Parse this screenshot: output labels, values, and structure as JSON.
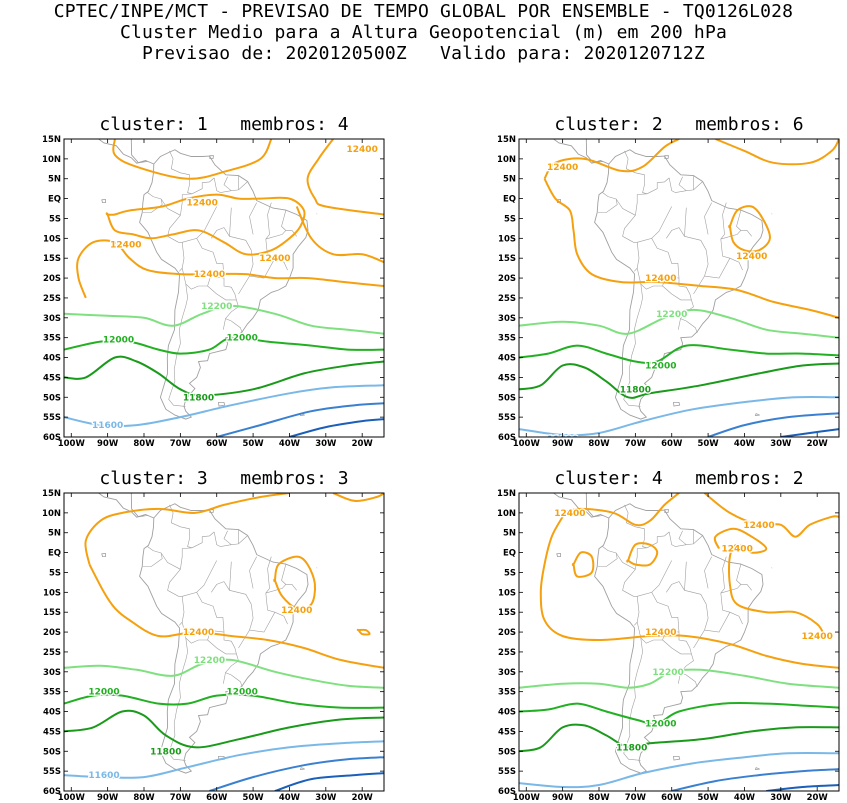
{
  "header": {
    "line1": "CPTEC/INPE/MCT - PREVISAO DE TEMPO GLOBAL POR ENSEMBLE - TQ0126L028",
    "line2": "Cluster Medio para a Altura Geopotencial (m) em 200 hPa",
    "line3": "Previsao de: 2020120500Z   Valido para: 2020120712Z"
  },
  "colors": {
    "c12400": "#f5a00f",
    "c12200": "#7fe07f",
    "c12000": "#22b022",
    "c11800": "#1a9a1a",
    "c11600": "#7ab8e8",
    "c11400": "#3a80d0",
    "c11200": "#1a5fb8",
    "land": "#a0a0a0"
  },
  "axes": {
    "x_ticks": [
      "100W",
      "90W",
      "80W",
      "70W",
      "60W",
      "50W",
      "40W",
      "30W",
      "20W"
    ],
    "y_ticks": [
      "15N",
      "10N",
      "5N",
      "EQ",
      "5S",
      "10S",
      "15S",
      "20S",
      "25S",
      "30S",
      "35S",
      "40S",
      "45S",
      "50S",
      "55S",
      "60S"
    ]
  },
  "chart_data": [
    {
      "type": "line",
      "title": "cluster: 1   membros: 4",
      "xlim": [
        -102,
        -14
      ],
      "ylim": [
        -60,
        15
      ],
      "labels": [
        {
          "text": "12400",
          "lon": -20,
          "lat": 12.5,
          "level": 12400
        },
        {
          "text": "12400",
          "lon": -64,
          "lat": -1,
          "level": 12400
        },
        {
          "text": "12400",
          "lon": -85,
          "lat": -11.5,
          "level": 12400
        },
        {
          "text": "12400",
          "lon": -44,
          "lat": -15,
          "level": 12400
        },
        {
          "text": "12400",
          "lon": -62,
          "lat": -19,
          "level": 12400
        },
        {
          "text": "12200",
          "lon": -60,
          "lat": -27,
          "level": 12200
        },
        {
          "text": "12000",
          "lon": -87,
          "lat": -35.5,
          "level": 12000
        },
        {
          "text": "12000",
          "lon": -53,
          "lat": -35,
          "level": 12000
        },
        {
          "text": "11800",
          "lon": -65,
          "lat": -50,
          "level": 11800
        },
        {
          "text": "11600",
          "lon": -90,
          "lat": -57,
          "level": 11600
        }
      ]
    },
    {
      "type": "line",
      "title": "cluster: 2   membros: 6",
      "xlim": [
        -102,
        -14
      ],
      "ylim": [
        -60,
        15
      ],
      "labels": [
        {
          "text": "12400",
          "lon": -90,
          "lat": 8,
          "level": 12400
        },
        {
          "text": "12400",
          "lon": -38,
          "lat": -14.5,
          "level": 12400
        },
        {
          "text": "12400",
          "lon": -63,
          "lat": -20,
          "level": 12400
        },
        {
          "text": "12200",
          "lon": -60,
          "lat": -29,
          "level": 12200
        },
        {
          "text": "12000",
          "lon": -63,
          "lat": -42,
          "level": 12000
        },
        {
          "text": "11800",
          "lon": -70,
          "lat": -48,
          "level": 11800
        },
        {
          "text": "11600",
          "lon": -90,
          "lat": -60.5,
          "level": 11600
        }
      ]
    },
    {
      "type": "line",
      "title": "cluster: 3   membros: 3",
      "xlim": [
        -102,
        -14
      ],
      "ylim": [
        -60,
        15
      ],
      "labels": [
        {
          "text": "12400",
          "lon": -38,
          "lat": -14.5,
          "level": 12400
        },
        {
          "text": "12400",
          "lon": -65,
          "lat": -20,
          "level": 12400
        },
        {
          "text": "12200",
          "lon": -62,
          "lat": -27,
          "level": 12200
        },
        {
          "text": "12000",
          "lon": -91,
          "lat": -35,
          "level": 12000
        },
        {
          "text": "12000",
          "lon": -53,
          "lat": -35,
          "level": 12000
        },
        {
          "text": "11800",
          "lon": -74,
          "lat": -50,
          "level": 11800
        },
        {
          "text": "11600",
          "lon": -91,
          "lat": -56,
          "level": 11600
        }
      ]
    },
    {
      "type": "line",
      "title": "cluster: 4   membros: 2",
      "xlim": [
        -102,
        -14
      ],
      "ylim": [
        -60,
        15
      ],
      "labels": [
        {
          "text": "12400",
          "lon": -88,
          "lat": 10,
          "level": 12400
        },
        {
          "text": "12400",
          "lon": -36,
          "lat": 7,
          "level": 12400
        },
        {
          "text": "12400",
          "lon": -42,
          "lat": 1,
          "level": 12400
        },
        {
          "text": "12400",
          "lon": -20,
          "lat": -21,
          "level": 12400
        },
        {
          "text": "12400",
          "lon": -63,
          "lat": -20,
          "level": 12400
        },
        {
          "text": "12200",
          "lon": -61,
          "lat": -30,
          "level": 12200
        },
        {
          "text": "12000",
          "lon": -63,
          "lat": -43,
          "level": 12000
        },
        {
          "text": "11800",
          "lon": -71,
          "lat": -49,
          "level": 11800
        }
      ]
    }
  ]
}
